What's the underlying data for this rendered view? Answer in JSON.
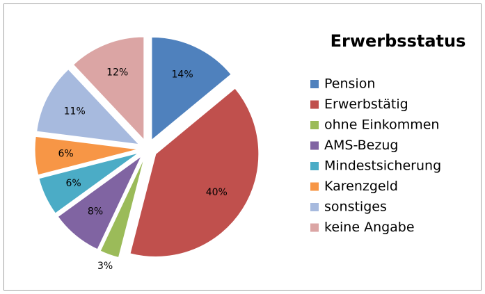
{
  "chart_data": {
    "type": "pie",
    "title": "Erwerbsstatus",
    "categories": [
      "Pension",
      "Erwerbstätig",
      "ohne Einkommen",
      "AMS-Bezug",
      "Mindestsicherung",
      "Karenzgeld",
      "sonstiges",
      "keine Angabe"
    ],
    "values": [
      14,
      40,
      3,
      8,
      6,
      6,
      11,
      12
    ],
    "value_labels": [
      "14%",
      "40%",
      "3%",
      "8%",
      "6%",
      "6%",
      "11%",
      "12%"
    ],
    "colors": [
      "#4f81bd",
      "#c0504d",
      "#9bbb59",
      "#8064a2",
      "#4bacc6",
      "#f79646",
      "#a7bade",
      "#dba5a4"
    ],
    "legend": "right"
  }
}
